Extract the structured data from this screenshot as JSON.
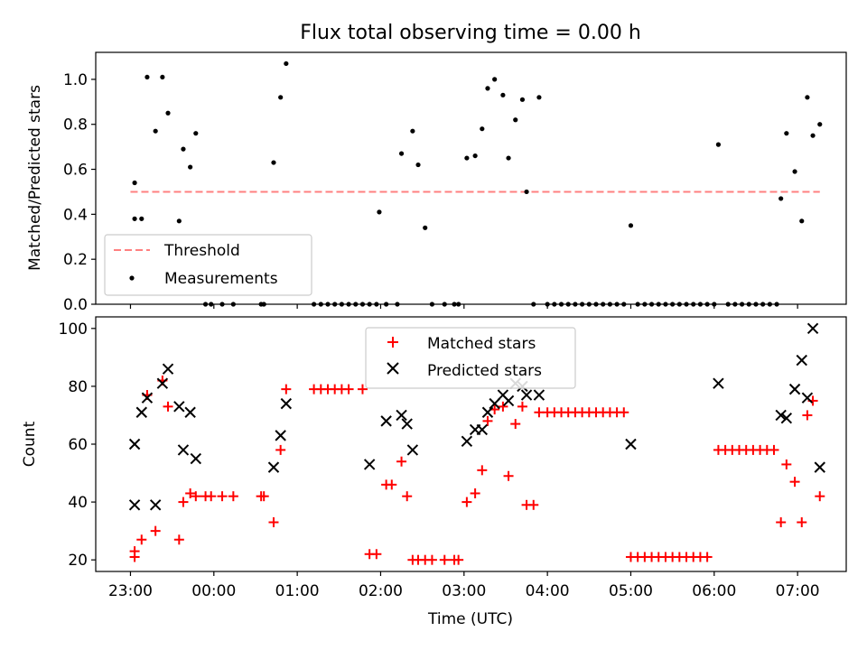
{
  "figure": {
    "title": "Flux total observing time = 0.00 h",
    "xlabel": "Time (UTC)",
    "xticks": [
      {
        "label": "23:00",
        "value": 0
      },
      {
        "label": "00:00",
        "value": 60
      },
      {
        "label": "01:00",
        "value": 120
      },
      {
        "label": "02:00",
        "value": 180
      },
      {
        "label": "03:00",
        "value": 240
      },
      {
        "label": "04:00",
        "value": 300
      },
      {
        "label": "05:00",
        "value": 360
      },
      {
        "label": "06:00",
        "value": 420
      },
      {
        "label": "07:00",
        "value": 480
      }
    ],
    "xlim": [
      -25,
      515
    ]
  },
  "chart_data": [
    {
      "type": "scatter",
      "ylabel": "Matched/Predicted stars",
      "ylim": [
        0,
        1.12
      ],
      "yticks": [
        "0.0",
        "0.2",
        "0.4",
        "0.6",
        "0.8",
        "1.0"
      ],
      "legend_position": "lower-left",
      "threshold": {
        "name": "Threshold",
        "value": 0.5,
        "x_range": [
          0,
          496
        ],
        "color": "#ff8080",
        "style": "dashed"
      },
      "series": [
        {
          "name": "Measurements",
          "color": "#000000",
          "marker": "point",
          "points": [
            [
              3,
              0.38
            ],
            [
              3,
              0.54
            ],
            [
              8,
              0.38
            ],
            [
              12,
              1.01
            ],
            [
              18,
              0.77
            ],
            [
              23,
              1.01
            ],
            [
              27,
              0.85
            ],
            [
              35,
              0.37
            ],
            [
              38,
              0.69
            ],
            [
              43,
              0.61
            ],
            [
              47,
              0.76
            ],
            [
              54,
              0
            ],
            [
              58,
              0
            ],
            [
              66,
              0
            ],
            [
              74,
              0
            ],
            [
              94,
              0
            ],
            [
              96,
              0
            ],
            [
              103,
              0.63
            ],
            [
              108,
              0.92
            ],
            [
              112,
              1.07
            ],
            [
              132,
              0
            ],
            [
              137,
              0
            ],
            [
              142,
              0
            ],
            [
              147,
              0
            ],
            [
              152,
              0
            ],
            [
              157,
              0
            ],
            [
              162,
              0
            ],
            [
              167,
              0
            ],
            [
              172,
              0
            ],
            [
              177,
              0
            ],
            [
              179,
              0.41
            ],
            [
              184,
              0
            ],
            [
              192,
              0
            ],
            [
              195,
              0.67
            ],
            [
              203,
              0.77
            ],
            [
              207,
              0.62
            ],
            [
              212,
              0.34
            ],
            [
              217,
              0
            ],
            [
              226,
              0
            ],
            [
              233,
              0
            ],
            [
              236,
              0
            ],
            [
              242,
              0.65
            ],
            [
              248,
              0.66
            ],
            [
              253,
              0.78
            ],
            [
              257,
              0.96
            ],
            [
              262,
              1.0
            ],
            [
              268,
              0.93
            ],
            [
              272,
              0.65
            ],
            [
              277,
              0.82
            ],
            [
              282,
              0.91
            ],
            [
              285,
              0.5
            ],
            [
              290,
              0
            ],
            [
              294,
              0.92
            ],
            [
              300,
              0
            ],
            [
              305,
              0
            ],
            [
              310,
              0
            ],
            [
              315,
              0
            ],
            [
              320,
              0
            ],
            [
              325,
              0
            ],
            [
              330,
              0
            ],
            [
              335,
              0
            ],
            [
              340,
              0
            ],
            [
              345,
              0
            ],
            [
              350,
              0
            ],
            [
              355,
              0
            ],
            [
              360,
              0.35
            ],
            [
              365,
              0
            ],
            [
              370,
              0
            ],
            [
              375,
              0
            ],
            [
              380,
              0
            ],
            [
              385,
              0
            ],
            [
              390,
              0
            ],
            [
              395,
              0
            ],
            [
              400,
              0
            ],
            [
              405,
              0
            ],
            [
              410,
              0
            ],
            [
              415,
              0
            ],
            [
              420,
              0
            ],
            [
              423,
              0.71
            ],
            [
              430,
              0
            ],
            [
              435,
              0
            ],
            [
              440,
              0
            ],
            [
              445,
              0
            ],
            [
              450,
              0
            ],
            [
              455,
              0
            ],
            [
              460,
              0
            ],
            [
              465,
              0
            ],
            [
              468,
              0.47
            ],
            [
              472,
              0.76
            ],
            [
              478,
              0.59
            ],
            [
              483,
              0.37
            ],
            [
              487,
              0.92
            ],
            [
              491,
              0.75
            ],
            [
              496,
              0.8
            ]
          ]
        }
      ]
    },
    {
      "type": "scatter",
      "ylabel": "Count",
      "ylim": [
        16,
        104
      ],
      "yticks": [
        "20",
        "40",
        "60",
        "80",
        "100"
      ],
      "legend_position": "upper-center",
      "series": [
        {
          "name": "Matched stars",
          "color": "#ff0000",
          "marker": "plus",
          "points": [
            [
              3,
              21
            ],
            [
              3,
              23
            ],
            [
              8,
              27
            ],
            [
              12,
              77
            ],
            [
              18,
              30
            ],
            [
              23,
              82
            ],
            [
              27,
              73
            ],
            [
              35,
              27
            ],
            [
              38,
              40
            ],
            [
              43,
              43
            ],
            [
              47,
              42
            ],
            [
              54,
              42
            ],
            [
              58,
              42
            ],
            [
              66,
              42
            ],
            [
              74,
              42
            ],
            [
              94,
              42
            ],
            [
              96,
              42
            ],
            [
              103,
              33
            ],
            [
              108,
              58
            ],
            [
              112,
              79
            ],
            [
              132,
              79
            ],
            [
              137,
              79
            ],
            [
              142,
              79
            ],
            [
              147,
              79
            ],
            [
              152,
              79
            ],
            [
              157,
              79
            ],
            [
              167,
              79
            ],
            [
              172,
              22
            ],
            [
              177,
              22
            ],
            [
              184,
              46
            ],
            [
              188,
              46
            ],
            [
              195,
              54
            ],
            [
              199,
              42
            ],
            [
              203,
              20
            ],
            [
              207,
              20
            ],
            [
              212,
              20
            ],
            [
              217,
              20
            ],
            [
              226,
              20
            ],
            [
              233,
              20
            ],
            [
              236,
              20
            ],
            [
              242,
              40
            ],
            [
              248,
              43
            ],
            [
              253,
              51
            ],
            [
              257,
              68
            ],
            [
              262,
              72
            ],
            [
              268,
              73
            ],
            [
              272,
              49
            ],
            [
              277,
              67
            ],
            [
              282,
              73
            ],
            [
              285,
              39
            ],
            [
              290,
              39
            ],
            [
              294,
              71
            ],
            [
              300,
              71
            ],
            [
              305,
              71
            ],
            [
              310,
              71
            ],
            [
              315,
              71
            ],
            [
              320,
              71
            ],
            [
              325,
              71
            ],
            [
              330,
              71
            ],
            [
              335,
              71
            ],
            [
              340,
              71
            ],
            [
              345,
              71
            ],
            [
              350,
              71
            ],
            [
              355,
              71
            ],
            [
              360,
              21
            ],
            [
              365,
              21
            ],
            [
              370,
              21
            ],
            [
              375,
              21
            ],
            [
              380,
              21
            ],
            [
              385,
              21
            ],
            [
              390,
              21
            ],
            [
              395,
              21
            ],
            [
              400,
              21
            ],
            [
              405,
              21
            ],
            [
              410,
              21
            ],
            [
              415,
              21
            ],
            [
              423,
              58
            ],
            [
              428,
              58
            ],
            [
              433,
              58
            ],
            [
              438,
              58
            ],
            [
              443,
              58
            ],
            [
              448,
              58
            ],
            [
              453,
              58
            ],
            [
              458,
              58
            ],
            [
              463,
              58
            ],
            [
              468,
              33
            ],
            [
              472,
              53
            ],
            [
              478,
              47
            ],
            [
              483,
              33
            ],
            [
              487,
              70
            ],
            [
              491,
              75
            ],
            [
              496,
              42
            ]
          ]
        },
        {
          "name": "Predicted stars",
          "color": "#000000",
          "marker": "x",
          "points": [
            [
              3,
              39
            ],
            [
              3,
              60
            ],
            [
              8,
              71
            ],
            [
              12,
              76
            ],
            [
              18,
              39
            ],
            [
              23,
              81
            ],
            [
              27,
              86
            ],
            [
              35,
              73
            ],
            [
              38,
              58
            ],
            [
              43,
              71
            ],
            [
              47,
              55
            ],
            [
              103,
              52
            ],
            [
              108,
              63
            ],
            [
              112,
              74
            ],
            [
              172,
              53
            ],
            [
              184,
              68
            ],
            [
              195,
              70
            ],
            [
              199,
              67
            ],
            [
              203,
              58
            ],
            [
              242,
              61
            ],
            [
              248,
              65
            ],
            [
              253,
              65
            ],
            [
              257,
              71
            ],
            [
              262,
              74
            ],
            [
              268,
              77
            ],
            [
              272,
              75
            ],
            [
              277,
              81
            ],
            [
              282,
              80
            ],
            [
              285,
              77
            ],
            [
              294,
              77
            ],
            [
              360,
              60
            ],
            [
              423,
              81
            ],
            [
              468,
              70
            ],
            [
              472,
              69
            ],
            [
              478,
              79
            ],
            [
              483,
              89
            ],
            [
              487,
              76
            ],
            [
              491,
              100
            ],
            [
              496,
              52
            ]
          ]
        }
      ]
    }
  ]
}
